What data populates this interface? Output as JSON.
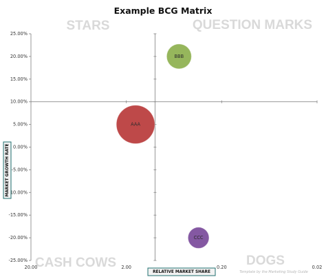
{
  "chart_data": {
    "type": "scatter",
    "title": "Example BCG Matrix",
    "xlabel": "RELATIVE MARKET SHARE",
    "ylabel": "MARKET GROWTH RATE",
    "x_scale": "log",
    "x_reversed": true,
    "xlim": [
      20.0,
      0.02
    ],
    "ylim": [
      -0.25,
      0.25
    ],
    "x_ticks": [
      20.0,
      2.0,
      0.2,
      0.02
    ],
    "x_tick_labels": [
      "20.00",
      "2.00",
      "0.20",
      "0.02"
    ],
    "y_ticks": [
      0.25,
      0.2,
      0.15,
      0.1,
      0.05,
      0.0,
      -0.05,
      -0.1,
      -0.15,
      -0.2,
      -0.25
    ],
    "y_tick_labels": [
      "25.00%",
      "20.00%",
      "15.00%",
      "10.00%",
      "5.00%",
      "0.00%",
      "-5.00%",
      "-10.00%",
      "-15.00%",
      "-20.00%",
      "-25.00%"
    ],
    "axis_crossing": {
      "x": 1.0,
      "y": 0.1
    },
    "grid": false,
    "quadrant_labels": {
      "top_left": "STARS",
      "top_right": "QUESTION MARKS",
      "bottom_left": "CASH COWS",
      "bottom_right": "DOGS"
    },
    "points": [
      {
        "label": "BBB",
        "x": 0.56,
        "y": 0.2,
        "size": 1.0,
        "color": "#8db04e"
      },
      {
        "label": "AAA",
        "x": 1.6,
        "y": 0.05,
        "size": 1.55,
        "color": "#b9393a"
      },
      {
        "label": "CCC",
        "x": 0.35,
        "y": -0.2,
        "size": 0.85,
        "color": "#7a4a9a"
      }
    ],
    "credit": "Template by the Marketing Study Guide"
  }
}
